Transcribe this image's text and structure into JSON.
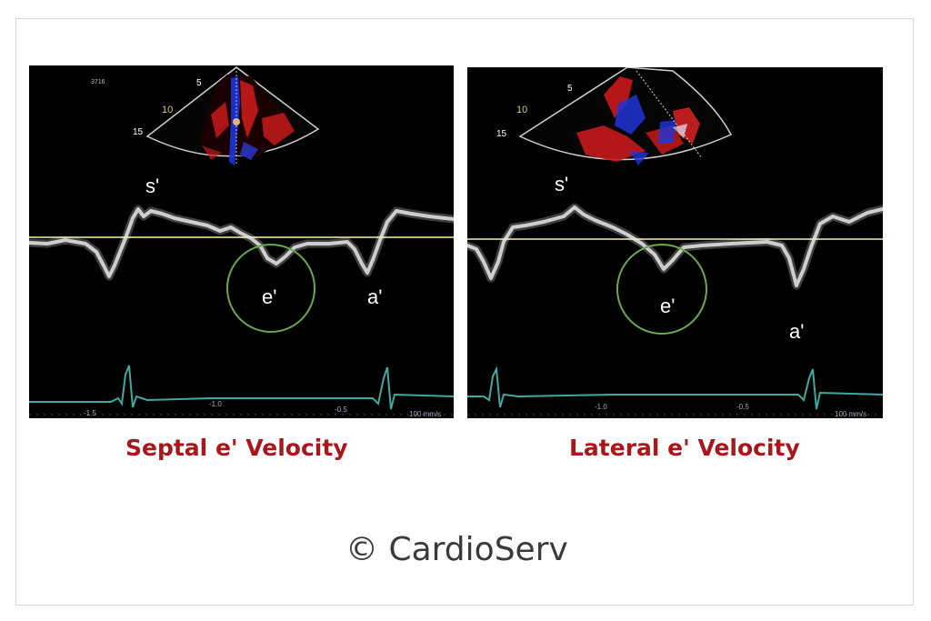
{
  "left_panel": {
    "corner_text": "3716",
    "depth_labels": [
      "5",
      "10",
      "15"
    ],
    "wave_labels": {
      "s": "s'",
      "e": "e'",
      "a": "a'"
    },
    "ecg_ticks": [
      "-1.5",
      "-1.0",
      "-0.5"
    ],
    "sweep_text": "100 mm/s",
    "caption": "Septal e' Velocity"
  },
  "right_panel": {
    "corner_text": "",
    "depth_labels": [
      "5",
      "10",
      "15"
    ],
    "wave_labels": {
      "s": "s'",
      "e": "e'",
      "a": "a'"
    },
    "ecg_ticks": [
      "-1.0",
      "-0.5"
    ],
    "sweep_text": "100 mm/s",
    "caption": "Lateral e' Velocity"
  },
  "copyright": "© CardioServ",
  "colors": {
    "caption": "#a8171b",
    "baseline": "#b8b87a",
    "circle": "#6aa84f",
    "ecg": "#3fa8a0"
  }
}
